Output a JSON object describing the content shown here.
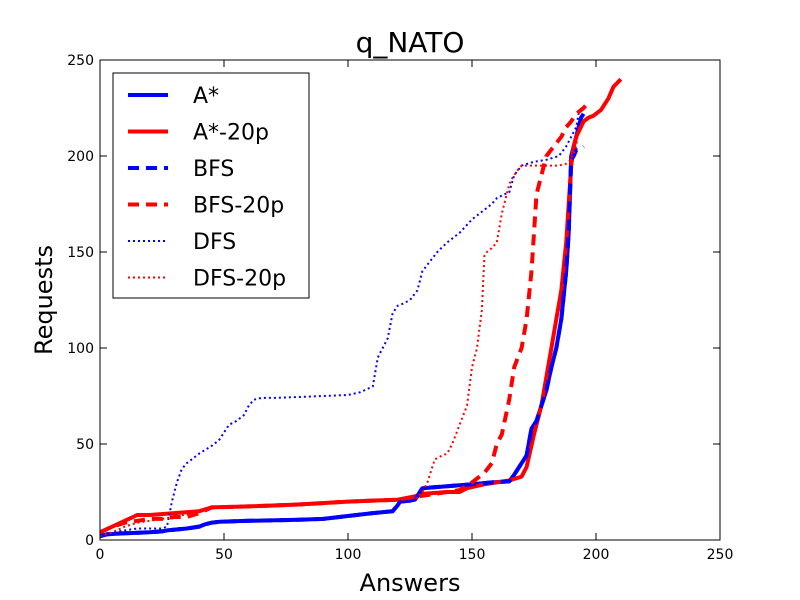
{
  "chart_data": {
    "type": "line",
    "title": "q_NATO",
    "xlabel": "Answers",
    "ylabel": "Requests",
    "xlim": [
      0,
      250
    ],
    "ylim": [
      0,
      250
    ],
    "xticks": [
      "0",
      "50",
      "100",
      "150",
      "200",
      "250"
    ],
    "yticks": [
      "0",
      "50",
      "100",
      "150",
      "200",
      "250"
    ],
    "grid": false,
    "legend_position": "upper-left",
    "series": [
      {
        "name": "A*",
        "color": "#0000ff",
        "style": "solid",
        "x": [
          0,
          3,
          10,
          20,
          25,
          27,
          35,
          40,
          42,
          45,
          48,
          60,
          80,
          90,
          100,
          110,
          118,
          120,
          121,
          125,
          127,
          130,
          140,
          150,
          158,
          165,
          167,
          170,
          172,
          174,
          176,
          178,
          180,
          182,
          184,
          186,
          188,
          189,
          190,
          191,
          192,
          193,
          194,
          195
        ],
        "y": [
          2,
          3,
          3.5,
          4,
          4.5,
          5,
          6,
          7,
          8,
          9,
          9.5,
          10,
          10.5,
          11,
          12.5,
          14,
          15,
          18,
          20,
          20.5,
          21,
          27,
          28,
          29,
          30,
          30.5,
          34,
          40,
          44,
          58,
          62,
          70,
          78,
          90,
          100,
          115,
          140,
          160,
          200,
          205,
          210,
          215,
          220,
          222
        ]
      },
      {
        "name": "A*-20p",
        "color": "#ff0000",
        "style": "solid",
        "x": [
          0,
          5,
          10,
          15,
          20,
          30,
          40,
          45,
          60,
          80,
          100,
          120,
          128,
          130,
          140,
          145,
          148,
          155,
          160,
          165,
          170,
          172,
          175,
          178,
          180,
          182,
          184,
          186,
          188,
          190,
          191,
          192,
          195,
          197,
          199,
          202,
          205,
          207,
          210
        ],
        "y": [
          4,
          7,
          10,
          13,
          13,
          14,
          15,
          17,
          17.5,
          18.5,
          20,
          21,
          23,
          24,
          25,
          25,
          27,
          29,
          30,
          31,
          33,
          38,
          55,
          70,
          85,
          100,
          115,
          130,
          155,
          195,
          205,
          210,
          218,
          220,
          221,
          224,
          230,
          236,
          240
        ]
      },
      {
        "name": "BFS",
        "color": "#0000ff",
        "style": "dashed",
        "x": [
          0,
          3,
          10,
          20,
          25,
          27,
          35,
          40,
          42,
          45,
          48,
          60,
          80,
          90,
          100,
          110,
          118,
          120,
          121,
          125,
          127,
          130,
          140,
          150,
          158,
          165,
          167,
          170,
          172,
          174,
          176,
          178,
          180,
          182,
          184,
          186,
          188,
          189,
          190,
          191,
          192,
          193,
          194,
          195
        ],
        "y": [
          2,
          3,
          3.5,
          4,
          4.5,
          5,
          6,
          7,
          8,
          9,
          9.5,
          10,
          10.5,
          11,
          12.5,
          14,
          15,
          18,
          20,
          20.5,
          21,
          27,
          28,
          29,
          30,
          30.5,
          34,
          40,
          44,
          58,
          62,
          70,
          78,
          90,
          100,
          115,
          140,
          160,
          198,
          200,
          203,
          203,
          204,
          205
        ]
      },
      {
        "name": "BFS-20p",
        "color": "#ff0000",
        "style": "dashed",
        "x": [
          0,
          5,
          10,
          15,
          20,
          25,
          30,
          35,
          40,
          45,
          60,
          80,
          100,
          120,
          130,
          140,
          145,
          150,
          155,
          158,
          160,
          162,
          165,
          167,
          170,
          172,
          174,
          175,
          176,
          178,
          180,
          183,
          186,
          188,
          190,
          192,
          195,
          197
        ],
        "y": [
          4,
          7,
          9,
          10,
          11,
          11,
          12,
          12,
          14,
          17,
          17.5,
          18.5,
          20,
          21,
          23,
          25,
          26,
          30,
          35,
          40,
          50,
          55,
          73,
          90,
          100,
          115,
          140,
          160,
          180,
          190,
          200,
          205,
          210,
          215,
          218,
          222,
          225,
          228
        ]
      },
      {
        "name": "DFS",
        "color": "#0000ff",
        "style": "dotted",
        "x": [
          0,
          5,
          10,
          15,
          20,
          25,
          27,
          29,
          31,
          33,
          35,
          40,
          45,
          48,
          50,
          52,
          55,
          58,
          60,
          62,
          65,
          70,
          80,
          90,
          100,
          105,
          110,
          112,
          114,
          116,
          118,
          120,
          122,
          125,
          128,
          130,
          133,
          136,
          140,
          145,
          150,
          155,
          158,
          160,
          163,
          165,
          167,
          170,
          175,
          180,
          185,
          188,
          190,
          192,
          193
        ],
        "y": [
          2,
          4,
          5,
          6,
          6,
          6,
          7,
          20,
          30,
          37,
          40,
          45,
          49,
          52,
          56,
          60,
          62,
          65,
          70,
          73,
          74,
          74,
          74.5,
          75,
          75.5,
          77,
          80,
          95,
          100,
          105,
          118,
          122,
          123,
          125,
          130,
          140,
          145,
          150,
          155,
          160,
          167,
          172,
          175,
          178,
          180,
          181,
          190,
          195,
          197,
          198,
          200,
          205,
          210,
          215,
          222
        ]
      },
      {
        "name": "DFS-20p",
        "color": "#ff0000",
        "style": "dotted",
        "x": [
          0,
          5,
          10,
          15,
          20,
          30,
          40,
          45,
          60,
          80,
          100,
          120,
          128,
          130,
          132,
          135,
          138,
          140,
          142,
          145,
          148,
          150,
          152,
          154,
          155,
          156,
          158,
          160,
          162,
          164,
          165,
          166,
          167,
          168,
          170,
          175,
          180,
          185,
          188,
          190,
          192,
          193
        ],
        "y": [
          2,
          4,
          7,
          9,
          10,
          12,
          15,
          17,
          17.5,
          18.5,
          20,
          21,
          22,
          25,
          30,
          42,
          44,
          45,
          50,
          60,
          70,
          90,
          100,
          120,
          148,
          150,
          152,
          155,
          170,
          180,
          185,
          188,
          190,
          192,
          195,
          195,
          195,
          195,
          196,
          198,
          205,
          215
        ]
      }
    ]
  }
}
